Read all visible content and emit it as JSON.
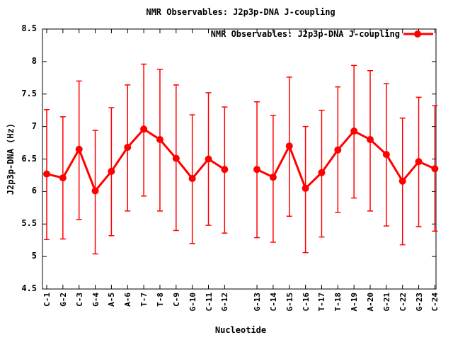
{
  "chart": {
    "title": "NMR Observables: J2p3p-DNA J-coupling",
    "xlabel": "Nucleotide",
    "ylabel": "J2p3p-DNA (Hz)",
    "legend_label": "NMR Observables: J2p3p-DNA J-coupling",
    "accent_color": "#ff0000",
    "frame_color": "#000000",
    "background_color": "#ffffff"
  },
  "chart_data": {
    "type": "line",
    "title": "NMR Observables: J2p3p-DNA J-coupling",
    "xlabel": "Nucleotide",
    "ylabel": "J2p3p-DNA (Hz)",
    "legend": "NMR Observables: J2p3p-DNA J-coupling",
    "legend_position": "top-right-inside",
    "grid": false,
    "ylim": [
      4.5,
      8.5
    ],
    "ytick_step": 0.5,
    "ytick_labels": [
      "4.5",
      "5",
      "5.5",
      "6",
      "6.5",
      "7",
      "7.5",
      "8",
      "8.5"
    ],
    "marker": "filled-circle",
    "error_bars": true,
    "series_color": "#ff0000",
    "gap_after_index": 11,
    "categories": [
      "C-1",
      "G-2",
      "C-3",
      "G-4",
      "A-5",
      "A-6",
      "T-7",
      "T-8",
      "C-9",
      "G-10",
      "C-11",
      "G-12",
      "G-13",
      "C-14",
      "G-15",
      "C-16",
      "T-17",
      "T-18",
      "A-19",
      "A-20",
      "G-21",
      "C-22",
      "G-23",
      "C-24"
    ],
    "values": [
      6.27,
      6.21,
      6.65,
      6.01,
      6.31,
      6.68,
      6.96,
      6.8,
      6.51,
      6.2,
      6.5,
      6.34,
      6.34,
      6.22,
      6.7,
      6.05,
      6.29,
      6.64,
      6.93,
      6.8,
      6.57,
      6.16,
      6.46,
      6.35
    ],
    "error_low": [
      5.26,
      5.27,
      5.57,
      5.04,
      5.32,
      5.7,
      5.93,
      5.7,
      5.4,
      5.2,
      5.48,
      5.36,
      5.29,
      5.22,
      5.62,
      5.06,
      5.3,
      5.68,
      5.9,
      5.7,
      5.47,
      5.18,
      5.46,
      5.39
    ],
    "error_high": [
      7.26,
      7.15,
      7.7,
      6.94,
      7.29,
      7.64,
      7.96,
      7.88,
      7.64,
      7.18,
      7.52,
      7.3,
      7.38,
      7.17,
      7.76,
      7.0,
      7.25,
      7.61,
      7.94,
      7.86,
      7.66,
      7.13,
      7.45,
      7.32
    ]
  }
}
